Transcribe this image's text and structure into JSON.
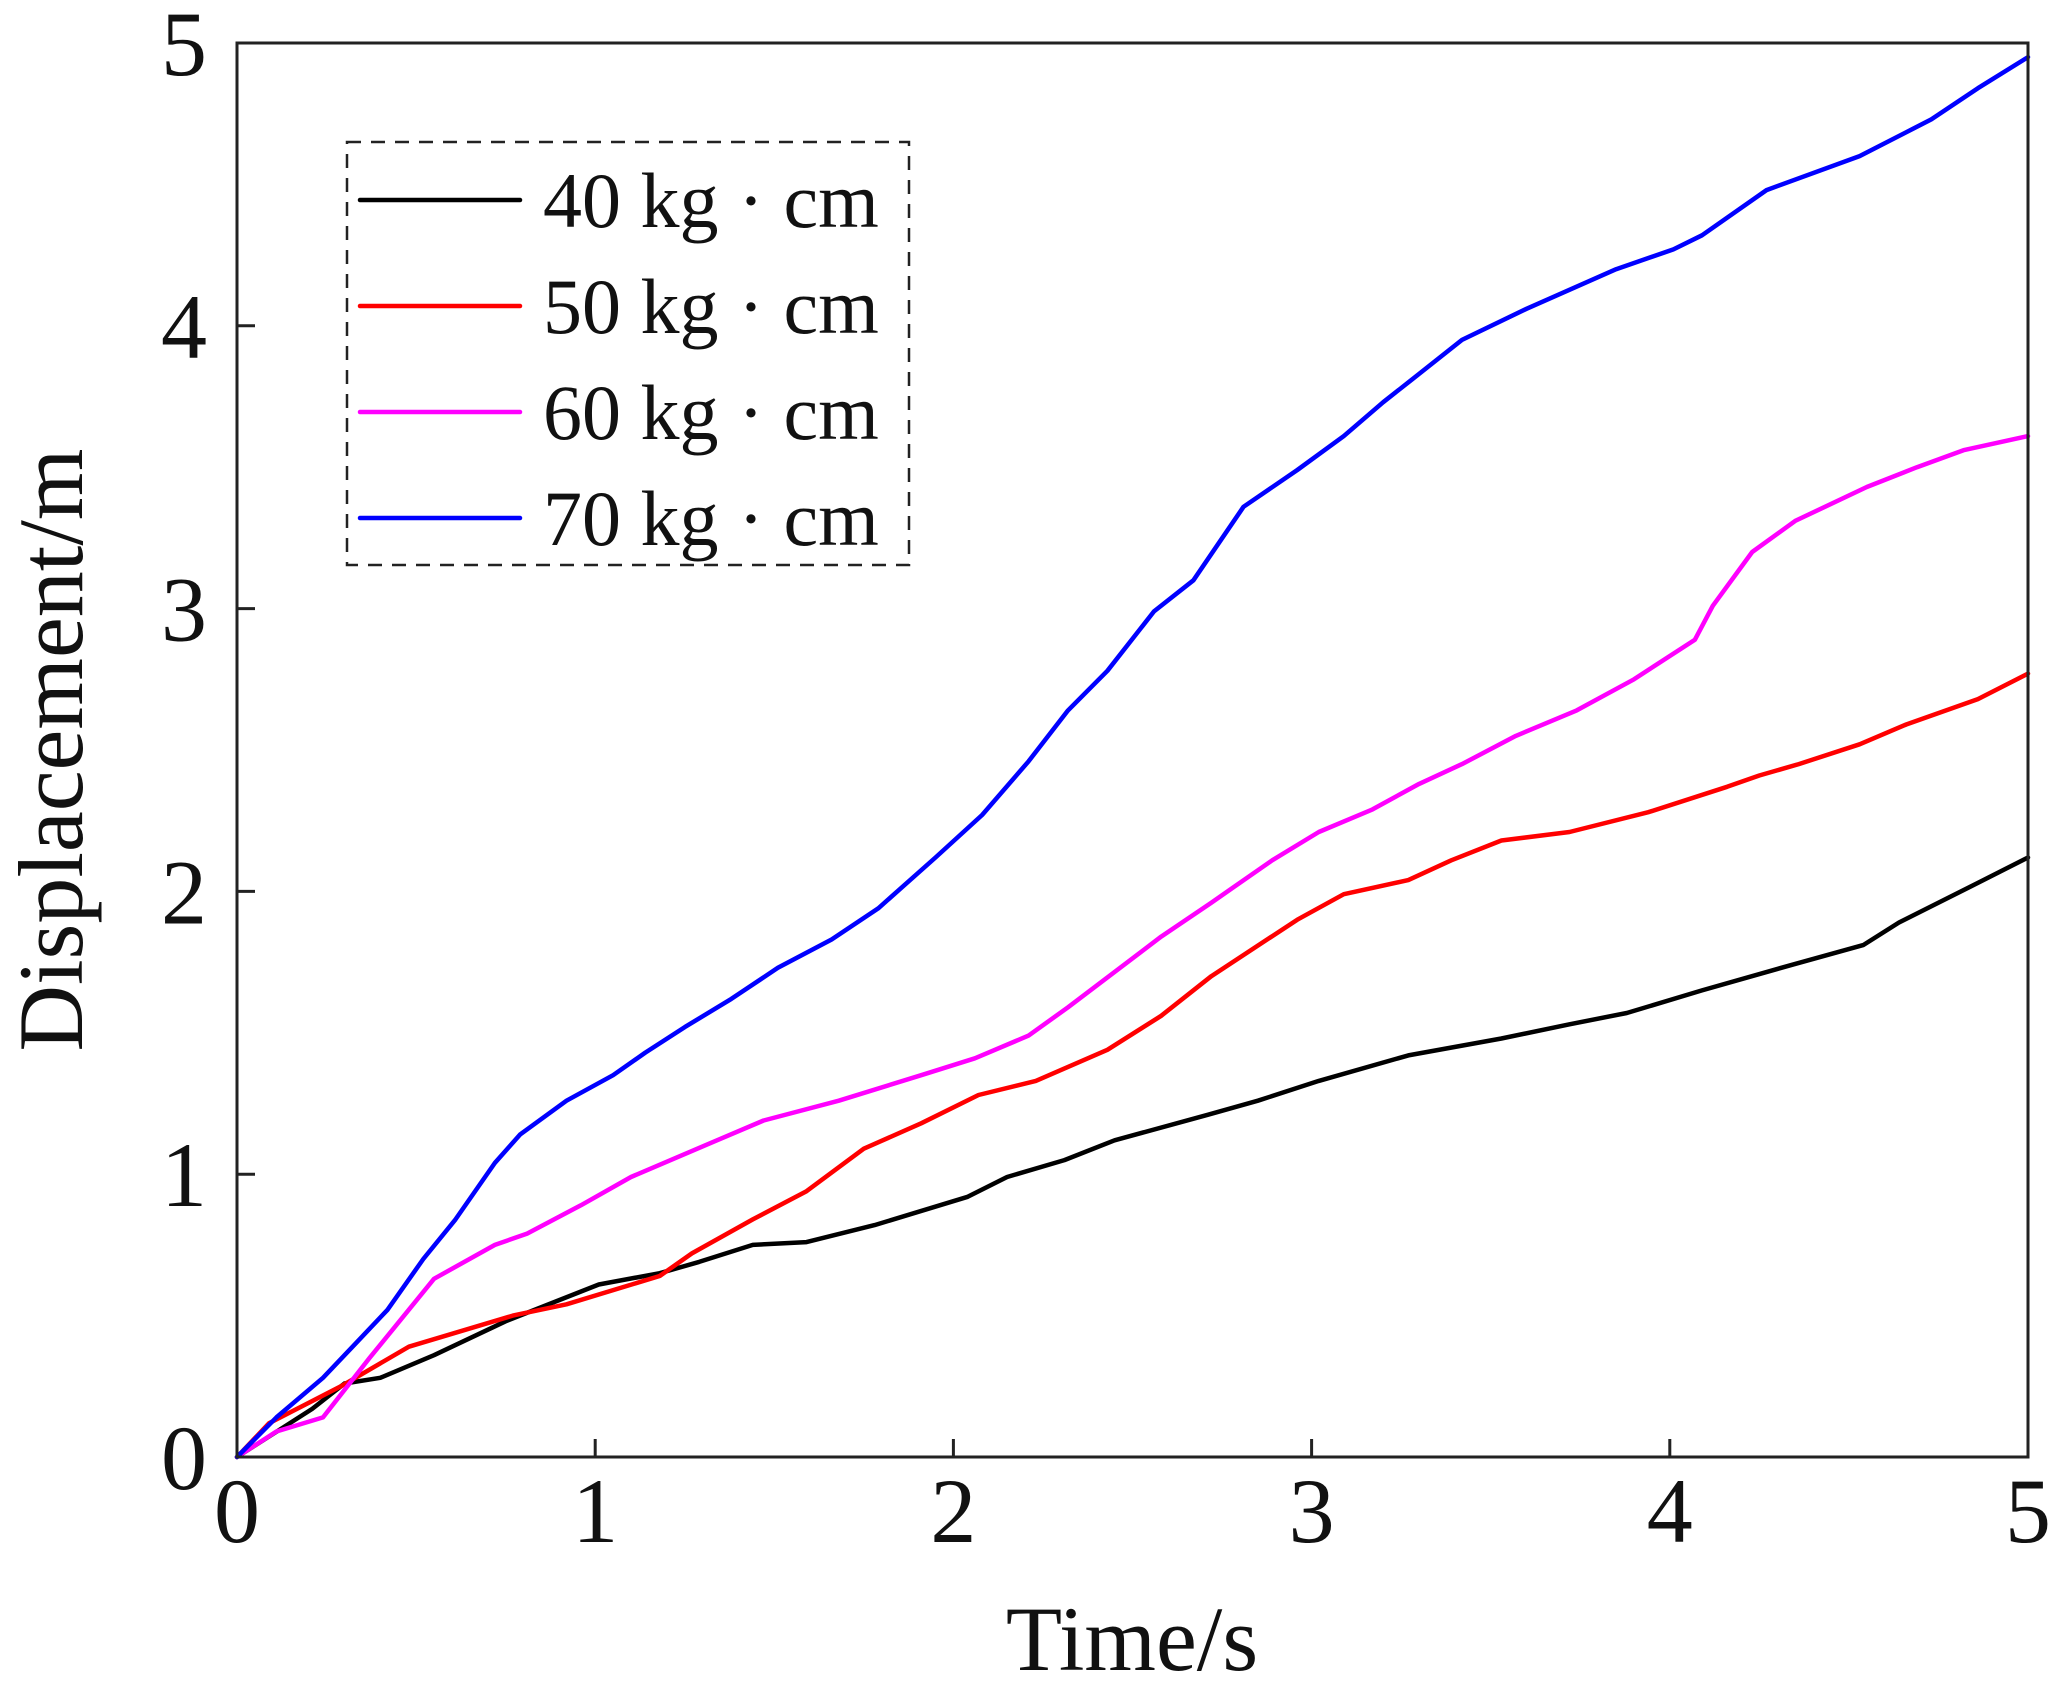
{
  "chart_data": {
    "type": "line",
    "title": "",
    "xlabel": "Time/s",
    "ylabel": "Displacement/m",
    "xlim": [
      0,
      5
    ],
    "ylim": [
      0,
      5
    ],
    "xticks": [
      0,
      1,
      2,
      3,
      4,
      5
    ],
    "yticks": [
      0,
      1,
      2,
      3,
      4,
      5
    ],
    "xtick_labels": [
      "0",
      "1",
      "2",
      "3",
      "4",
      "5"
    ],
    "ytick_labels": [
      "0",
      "1",
      "2",
      "3",
      "4",
      "5"
    ],
    "grid": false,
    "legend": {
      "placement": "top-left",
      "border": "dashed"
    },
    "series": [
      {
        "name": "40 kg · cm",
        "color": "#000000",
        "x": [
          0,
          0.21,
          0.3,
          0.4,
          0.55,
          0.75,
          1.01,
          1.18,
          1.29,
          1.44,
          1.59,
          1.78,
          2.04,
          2.15,
          2.31,
          2.45,
          2.71,
          2.85,
          3.02,
          3.27,
          3.53,
          3.72,
          3.88,
          4.09,
          4.34,
          4.54,
          4.64,
          4.86,
          5.0
        ],
        "y": [
          0,
          0.17,
          0.26,
          0.28,
          0.36,
          0.48,
          0.61,
          0.65,
          0.69,
          0.75,
          0.76,
          0.82,
          0.92,
          0.99,
          1.05,
          1.12,
          1.21,
          1.26,
          1.33,
          1.42,
          1.48,
          1.53,
          1.57,
          1.65,
          1.74,
          1.81,
          1.89,
          2.03,
          2.12
        ]
      },
      {
        "name": "50 kg · cm",
        "color": "#ff0000",
        "x": [
          0,
          0.09,
          0.29,
          0.48,
          0.77,
          0.92,
          1.18,
          1.27,
          1.44,
          1.59,
          1.75,
          1.91,
          2.07,
          2.23,
          2.43,
          2.58,
          2.72,
          2.96,
          3.09,
          3.27,
          3.39,
          3.53,
          3.72,
          3.94,
          4.16,
          4.25,
          4.36,
          4.53,
          4.66,
          4.86,
          5.0
        ],
        "y": [
          0,
          0.12,
          0.25,
          0.39,
          0.5,
          0.54,
          0.64,
          0.72,
          0.84,
          0.94,
          1.09,
          1.18,
          1.28,
          1.33,
          1.44,
          1.56,
          1.7,
          1.9,
          1.99,
          2.04,
          2.11,
          2.18,
          2.21,
          2.28,
          2.37,
          2.41,
          2.45,
          2.52,
          2.59,
          2.68,
          2.77
        ]
      },
      {
        "name": "60 kg · cm",
        "color": "#ff00ff",
        "x": [
          0,
          0.11,
          0.24,
          0.37,
          0.55,
          0.72,
          0.81,
          0.96,
          1.1,
          1.34,
          1.47,
          1.68,
          1.91,
          2.06,
          2.21,
          2.32,
          2.58,
          2.72,
          2.89,
          3.02,
          3.17,
          3.3,
          3.42,
          3.57,
          3.74,
          3.9,
          4.07,
          4.12,
          4.23,
          4.35,
          4.55,
          4.69,
          4.82,
          5.0
        ],
        "y": [
          0,
          0.09,
          0.14,
          0.35,
          0.63,
          0.75,
          0.79,
          0.89,
          0.99,
          1.12,
          1.19,
          1.26,
          1.35,
          1.41,
          1.49,
          1.59,
          1.84,
          1.96,
          2.11,
          2.21,
          2.29,
          2.38,
          2.45,
          2.55,
          2.64,
          2.75,
          2.89,
          3.01,
          3.2,
          3.31,
          3.43,
          3.5,
          3.56,
          3.61
        ]
      },
      {
        "name": "70 kg · cm",
        "color": "#0000ff",
        "x": [
          0,
          0.11,
          0.24,
          0.33,
          0.42,
          0.52,
          0.61,
          0.72,
          0.79,
          0.92,
          1.05,
          1.14,
          1.25,
          1.38,
          1.51,
          1.66,
          1.79,
          1.95,
          2.08,
          2.21,
          2.32,
          2.43,
          2.56,
          2.67,
          2.81,
          2.96,
          3.09,
          3.2,
          3.3,
          3.42,
          3.6,
          3.85,
          4.01,
          4.09,
          4.27,
          4.53,
          4.73,
          4.86,
          5.0
        ],
        "y": [
          0,
          0.14,
          0.28,
          0.4,
          0.52,
          0.7,
          0.84,
          1.04,
          1.14,
          1.26,
          1.35,
          1.43,
          1.52,
          1.62,
          1.73,
          1.83,
          1.94,
          2.12,
          2.27,
          2.46,
          2.64,
          2.78,
          2.99,
          3.1,
          3.36,
          3.49,
          3.61,
          3.73,
          3.83,
          3.95,
          4.06,
          4.2,
          4.27,
          4.32,
          4.48,
          4.6,
          4.73,
          4.84,
          4.95
        ]
      }
    ]
  }
}
